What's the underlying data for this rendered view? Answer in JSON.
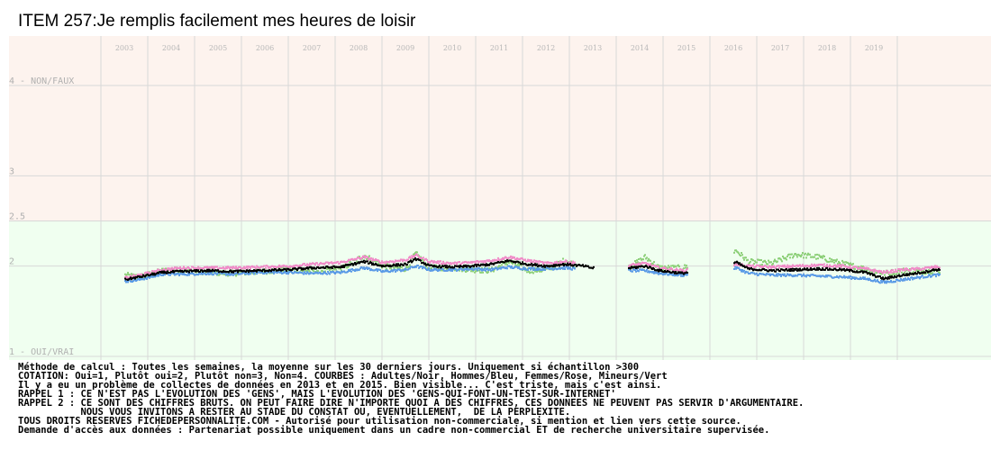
{
  "chart_data": {
    "type": "scatter",
    "title": "ITEM 257:Je remplis facilement mes heures de loisir",
    "x_ticks": [
      "2003",
      "2004",
      "2005",
      "2006",
      "2007",
      "2008",
      "2009",
      "2010",
      "2011",
      "2012",
      "2013",
      "2014",
      "2015",
      "2016",
      "2017",
      "2018",
      "2019"
    ],
    "y_tick_labels": [
      {
        "value": 4,
        "label": "4 - NON/FAUX"
      },
      {
        "value": 3,
        "label": "3"
      },
      {
        "value": 2.5,
        "label": "2.5"
      },
      {
        "value": 2,
        "label": "2"
      },
      {
        "value": 1,
        "label": "1 - OUI/VRAI"
      }
    ],
    "ylim": [
      1,
      4
    ],
    "xlim": [
      2002.6,
      2020.55
    ],
    "grid": true,
    "background_bands": [
      {
        "from": 2.5,
        "to": 4,
        "color": "#fdf3ee"
      },
      {
        "from": 1,
        "to": 2.5,
        "color": "#f0fff0"
      }
    ],
    "gaps": [
      [
        2013.0,
        2013.75
      ],
      [
        2015.0,
        2016.0
      ]
    ],
    "series": [
      {
        "name": "Adultes",
        "color": "#000000",
        "anchors": [
          [
            2003.0,
            1.85
          ],
          [
            2003.3,
            1.88
          ],
          [
            2003.8,
            1.93
          ],
          [
            2004.2,
            1.94
          ],
          [
            2004.8,
            1.95
          ],
          [
            2005.3,
            1.94
          ],
          [
            2005.9,
            1.95
          ],
          [
            2006.5,
            1.96
          ],
          [
            2007.0,
            1.98
          ],
          [
            2007.6,
            1.99
          ],
          [
            2008.1,
            2.05
          ],
          [
            2008.5,
            2.0
          ],
          [
            2009.0,
            2.02
          ],
          [
            2009.2,
            2.08
          ],
          [
            2009.5,
            2.0
          ],
          [
            2010.0,
            1.99
          ],
          [
            2010.4,
            2.0
          ],
          [
            2010.8,
            2.02
          ],
          [
            2011.2,
            2.06
          ],
          [
            2011.6,
            2.02
          ],
          [
            2012.0,
            2.0
          ],
          [
            2012.4,
            2.02
          ],
          [
            2012.8,
            2.0
          ],
          [
            2012.95,
            1.98
          ],
          [
            2013.8,
            1.98
          ],
          [
            2014.1,
            2.0
          ],
          [
            2014.4,
            1.95
          ],
          [
            2014.9,
            1.92
          ],
          [
            2016.05,
            2.04
          ],
          [
            2016.3,
            1.97
          ],
          [
            2016.8,
            1.95
          ],
          [
            2017.3,
            1.96
          ],
          [
            2017.8,
            1.97
          ],
          [
            2018.3,
            1.96
          ],
          [
            2018.8,
            1.93
          ],
          [
            2019.2,
            1.86
          ],
          [
            2019.6,
            1.9
          ],
          [
            2020.0,
            1.93
          ],
          [
            2020.3,
            1.96
          ]
        ]
      },
      {
        "name": "Hommes",
        "color": "#5b9be6",
        "anchors": [
          [
            2003.0,
            1.83
          ],
          [
            2003.3,
            1.85
          ],
          [
            2003.8,
            1.91
          ],
          [
            2004.2,
            1.91
          ],
          [
            2004.8,
            1.92
          ],
          [
            2005.3,
            1.91
          ],
          [
            2005.9,
            1.93
          ],
          [
            2006.5,
            1.93
          ],
          [
            2007.0,
            1.92
          ],
          [
            2007.6,
            1.93
          ],
          [
            2008.1,
            1.98
          ],
          [
            2008.5,
            1.94
          ],
          [
            2009.0,
            1.96
          ],
          [
            2009.2,
            2.0
          ],
          [
            2009.5,
            1.96
          ],
          [
            2010.0,
            1.96
          ],
          [
            2010.4,
            1.97
          ],
          [
            2010.8,
            1.96
          ],
          [
            2011.2,
            1.99
          ],
          [
            2011.6,
            1.97
          ],
          [
            2012.0,
            1.97
          ],
          [
            2012.4,
            1.98
          ],
          [
            2012.8,
            1.96
          ],
          [
            2012.95,
            1.95
          ],
          [
            2013.8,
            1.95
          ],
          [
            2014.1,
            1.95
          ],
          [
            2014.4,
            1.92
          ],
          [
            2014.9,
            1.9
          ],
          [
            2016.05,
            1.98
          ],
          [
            2016.3,
            1.92
          ],
          [
            2016.8,
            1.9
          ],
          [
            2017.3,
            1.9
          ],
          [
            2017.8,
            1.89
          ],
          [
            2018.3,
            1.88
          ],
          [
            2018.8,
            1.86
          ],
          [
            2019.2,
            1.82
          ],
          [
            2019.6,
            1.85
          ],
          [
            2020.0,
            1.88
          ],
          [
            2020.3,
            1.9
          ]
        ]
      },
      {
        "name": "Femmes",
        "color": "#f08cc8",
        "anchors": [
          [
            2003.0,
            1.87
          ],
          [
            2003.3,
            1.9
          ],
          [
            2003.8,
            1.96
          ],
          [
            2004.2,
            1.98
          ],
          [
            2004.8,
            1.98
          ],
          [
            2005.3,
            1.98
          ],
          [
            2005.9,
            1.99
          ],
          [
            2006.5,
            2.0
          ],
          [
            2007.0,
            2.02
          ],
          [
            2007.6,
            2.04
          ],
          [
            2008.1,
            2.1
          ],
          [
            2008.5,
            2.04
          ],
          [
            2009.0,
            2.07
          ],
          [
            2009.2,
            2.12
          ],
          [
            2009.5,
            2.05
          ],
          [
            2010.0,
            2.03
          ],
          [
            2010.4,
            2.04
          ],
          [
            2010.8,
            2.06
          ],
          [
            2011.2,
            2.1
          ],
          [
            2011.6,
            2.06
          ],
          [
            2012.0,
            2.03
          ],
          [
            2012.4,
            2.05
          ],
          [
            2012.8,
            2.02
          ],
          [
            2012.95,
            2.0
          ],
          [
            2013.8,
            2.01
          ],
          [
            2014.1,
            2.03
          ],
          [
            2014.4,
            1.98
          ],
          [
            2014.9,
            1.95
          ],
          [
            2016.05,
            2.02
          ],
          [
            2016.3,
            2.0
          ],
          [
            2016.8,
            1.99
          ],
          [
            2017.3,
            2.0
          ],
          [
            2017.8,
            2.01
          ],
          [
            2018.3,
            2.0
          ],
          [
            2018.8,
            1.97
          ],
          [
            2019.2,
            1.93
          ],
          [
            2019.6,
            1.96
          ],
          [
            2020.0,
            1.97
          ],
          [
            2020.3,
            1.99
          ]
        ]
      },
      {
        "name": "Mineurs",
        "color": "#8ed07a",
        "anchors": [
          [
            2003.0,
            1.9
          ],
          [
            2003.3,
            1.88
          ],
          [
            2003.8,
            1.95
          ],
          [
            2004.2,
            1.96
          ],
          [
            2004.8,
            1.93
          ],
          [
            2005.3,
            1.92
          ],
          [
            2005.9,
            1.94
          ],
          [
            2006.5,
            1.96
          ],
          [
            2007.0,
            1.95
          ],
          [
            2007.6,
            1.96
          ],
          [
            2008.1,
            2.12
          ],
          [
            2008.5,
            2.0
          ],
          [
            2009.0,
            1.97
          ],
          [
            2009.2,
            2.14
          ],
          [
            2009.5,
            1.98
          ],
          [
            2010.0,
            1.98
          ],
          [
            2010.4,
            1.96
          ],
          [
            2010.8,
            1.95
          ],
          [
            2011.2,
            2.05
          ],
          [
            2011.6,
            1.95
          ],
          [
            2012.0,
            1.96
          ],
          [
            2012.4,
            2.07
          ],
          [
            2012.8,
            1.95
          ],
          [
            2012.95,
            1.93
          ],
          [
            2013.8,
            2.0
          ],
          [
            2014.1,
            2.1
          ],
          [
            2014.4,
            1.98
          ],
          [
            2014.9,
            1.98
          ],
          [
            2016.05,
            2.17
          ],
          [
            2016.3,
            2.05
          ],
          [
            2016.8,
            2.03
          ],
          [
            2017.3,
            2.13
          ],
          [
            2017.8,
            2.1
          ],
          [
            2018.3,
            2.03
          ],
          [
            2018.8,
            1.97
          ],
          [
            2019.2,
            1.92
          ],
          [
            2019.6,
            1.95
          ],
          [
            2020.0,
            1.94
          ],
          [
            2020.3,
            1.95
          ]
        ]
      }
    ],
    "series_extents": {
      "Adultes": [
        [
          2003.0,
          2013.0
        ],
        [
          2013.75,
          2015.0
        ],
        [
          2016.0,
          2020.4
        ]
      ],
      "Hommes": [
        [
          2003.0,
          2012.6
        ],
        [
          2013.75,
          2015.0
        ],
        [
          2016.0,
          2020.4
        ]
      ],
      "Femmes": [
        [
          2003.0,
          2012.6
        ],
        [
          2013.75,
          2015.0
        ],
        [
          2016.0,
          2020.4
        ]
      ],
      "Mineurs": [
        [
          2003.0,
          2012.6
        ],
        [
          2013.75,
          2015.0
        ],
        [
          2016.0,
          2020.4
        ]
      ]
    }
  },
  "footer": [
    "Méthode de calcul : Toutes les semaines, la moyenne sur les 30 derniers jours. Uniquement si échantillon >300",
    "COTATION: Oui=1, Plutôt oui=2, Plutôt non=3, Non=4. COURBES : Adultes/Noir, Hommes/Bleu, Femmes/Rose, Mineurs/Vert",
    "Il y a eu un problème de collectes de données en 2013 et en 2015. Bien visible... C'est triste, mais c'est ainsi.",
    "RAPPEL 1 : CE N'EST PAS L'EVOLUTION DES 'GENS', MAIS L'EVOLUTION DES 'GENS-QUI-FONT-UN-TEST-SUR-INTERNET'",
    "RAPPEL 2 : CE SONT DES CHIFFRES BRUTS. ON PEUT FAIRE DIRE N'IMPORTE QUOI A DES CHIFFRES, CES DONNEES NE PEUVENT PAS SERVIR D'ARGUMENTAIRE.",
    "           NOUS VOUS INVITONS A RESTER AU STADE DU CONSTAT OU, EVENTUELLEMENT,  DE LA PERPLEXITE.",
    "TOUS DROITS RESERVES FICHEDEPERSONNALITE.COM - Autorisé pour utilisation non-commerciale, si mention et lien vers cette source.",
    "Demande d'accès aux données : Partenariat possible uniquement dans un cadre non-commercial ET de recherche universitaire supervisée."
  ]
}
